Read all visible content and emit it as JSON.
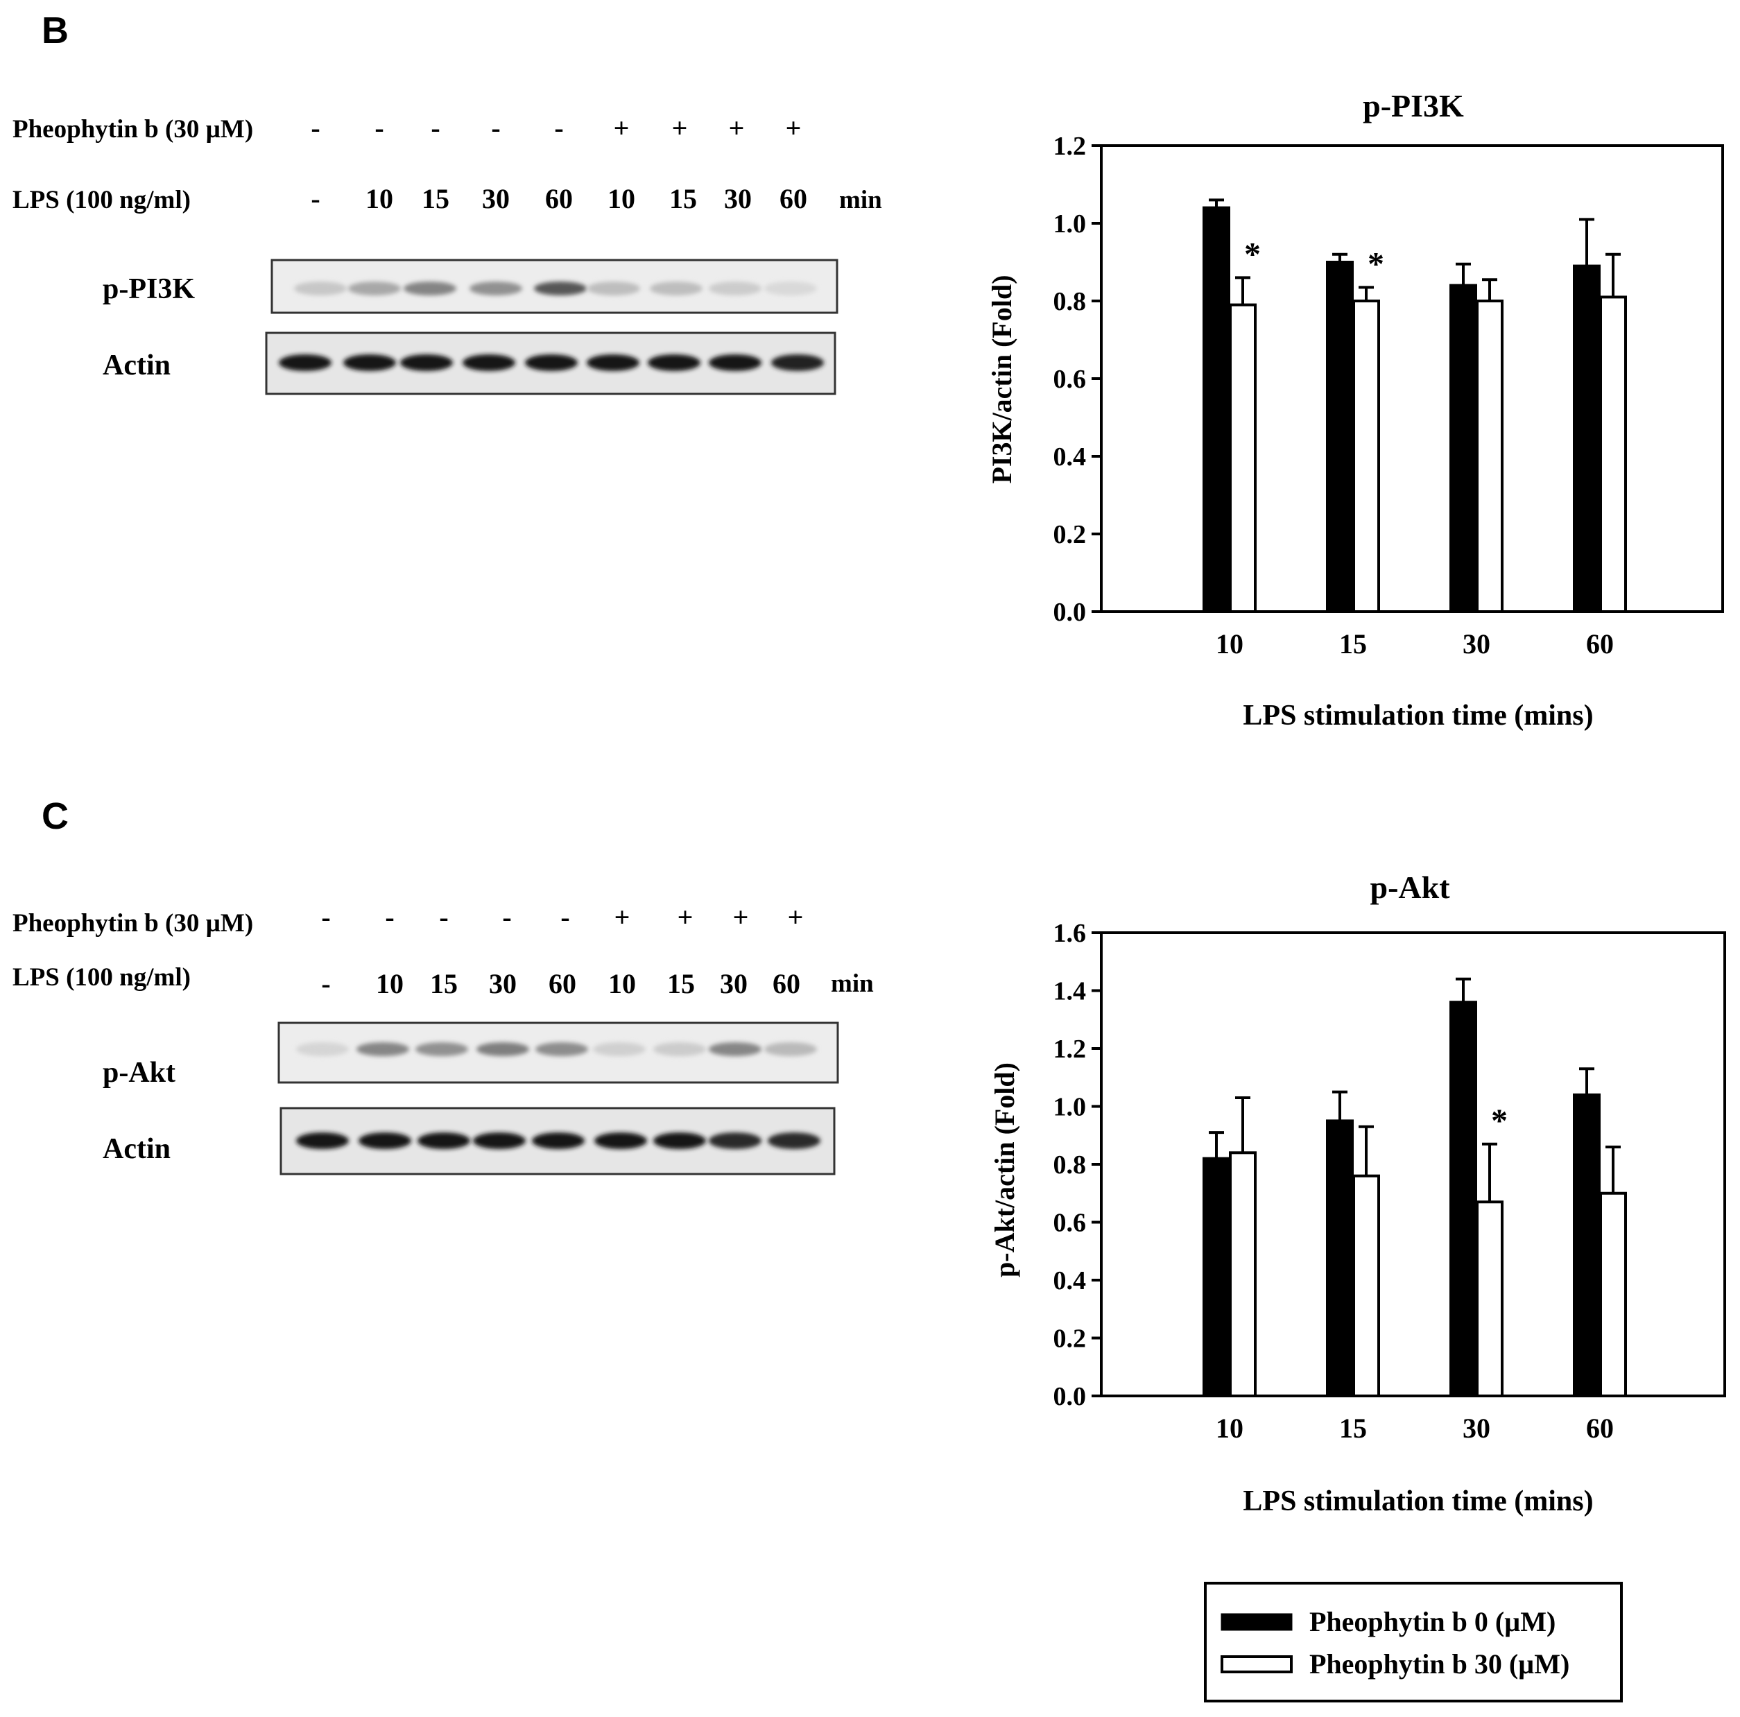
{
  "panels": [
    {
      "letter": "B",
      "blot": {
        "rows": [
          {
            "label": "Pheophytin b (30 µM)",
            "values": [
              "-",
              "-",
              "-",
              "-",
              "-",
              "+",
              "+",
              "+",
              "+"
            ]
          },
          {
            "label": "LPS (100 ng/ml)",
            "values": [
              "-",
              "10",
              "15",
              "30",
              "60",
              "10",
              "15",
              "30",
              "60"
            ],
            "unit": "min"
          }
        ],
        "bands": [
          {
            "label": "p-PI3K",
            "intensity": [
              0.16,
              0.3,
              0.46,
              0.4,
              0.66,
              0.2,
              0.2,
              0.14,
              0.08
            ]
          },
          {
            "label": "Actin",
            "intensity": [
              0.95,
              0.95,
              0.95,
              0.95,
              0.95,
              0.95,
              0.95,
              0.95,
              0.9
            ]
          }
        ]
      },
      "chart_data": {
        "type": "bar",
        "title": "p-PI3K",
        "xlabel": "LPS stimulation time (mins)",
        "ylabel": "PI3K/actin (Fold)",
        "categories": [
          "10",
          "15",
          "30",
          "60"
        ],
        "ylim": [
          0,
          1.2
        ],
        "yticks": [
          "0.0",
          "0.2",
          "0.4",
          "0.6",
          "0.8",
          "1.0",
          "1.2"
        ],
        "series": [
          {
            "name": "Pheophytin b 0 (µM)",
            "color": "#000000",
            "values": [
              1.04,
              0.9,
              0.84,
              0.89
            ],
            "errors": [
              0.02,
              0.02,
              0.055,
              0.12
            ]
          },
          {
            "name": "Pheophytin b 30  (µM)",
            "color": "#ffffff",
            "values": [
              0.79,
              0.8,
              0.8,
              0.81
            ],
            "errors": [
              0.07,
              0.035,
              0.055,
              0.11
            ]
          }
        ],
        "annotations": [
          {
            "category_index": 0,
            "series_index": 1,
            "text": "*"
          },
          {
            "category_index": 1,
            "series_index": 1,
            "text": "*"
          }
        ],
        "grid": false
      }
    },
    {
      "letter": "C",
      "blot": {
        "rows": [
          {
            "label": "Pheophytin b (30 µM)",
            "values": [
              "-",
              "-",
              "-",
              "-",
              "-",
              "+",
              "+",
              "+",
              "+"
            ]
          },
          {
            "label": "LPS (100 ng/ml)",
            "values": [
              "-",
              "10",
              "15",
              "30",
              "60",
              "10",
              "15",
              "30",
              "60"
            ],
            "unit": "min"
          }
        ],
        "bands": [
          {
            "label": "p-Akt",
            "intensity": [
              0.1,
              0.45,
              0.4,
              0.48,
              0.42,
              0.12,
              0.14,
              0.45,
              0.22
            ]
          },
          {
            "label": "Actin",
            "intensity": [
              0.95,
              0.95,
              0.95,
              0.95,
              0.95,
              0.95,
              0.95,
              0.85,
              0.85
            ]
          }
        ]
      },
      "chart_data": {
        "type": "bar",
        "title": "p-Akt",
        "xlabel": "LPS stimulation time (mins)",
        "ylabel": "p-Akt/actin (Fold)",
        "categories": [
          "10",
          "15",
          "30",
          "60"
        ],
        "ylim": [
          0,
          1.6
        ],
        "yticks": [
          "0.0",
          "0.2",
          "0.4",
          "0.6",
          "0.8",
          "1.0",
          "1.2",
          "1.4",
          "1.6"
        ],
        "series": [
          {
            "name": "Pheophytin b 0 (µM)",
            "color": "#000000",
            "values": [
              0.82,
              0.95,
              1.36,
              1.04
            ],
            "errors": [
              0.09,
              0.1,
              0.08,
              0.09
            ]
          },
          {
            "name": "Pheophytin b 30  (µM)",
            "color": "#ffffff",
            "values": [
              0.84,
              0.76,
              0.67,
              0.7
            ],
            "errors": [
              0.19,
              0.17,
              0.2,
              0.16
            ]
          }
        ],
        "annotations": [
          {
            "category_index": 2,
            "series_index": 1,
            "text": "*"
          }
        ],
        "grid": false
      }
    }
  ],
  "legend": {
    "placement": "bottom-right",
    "items": [
      {
        "label": "Pheophytin b 0 (µM)",
        "color": "#000000"
      },
      {
        "label": "Pheophytin b 30  (µM)",
        "color": "#ffffff"
      }
    ]
  }
}
